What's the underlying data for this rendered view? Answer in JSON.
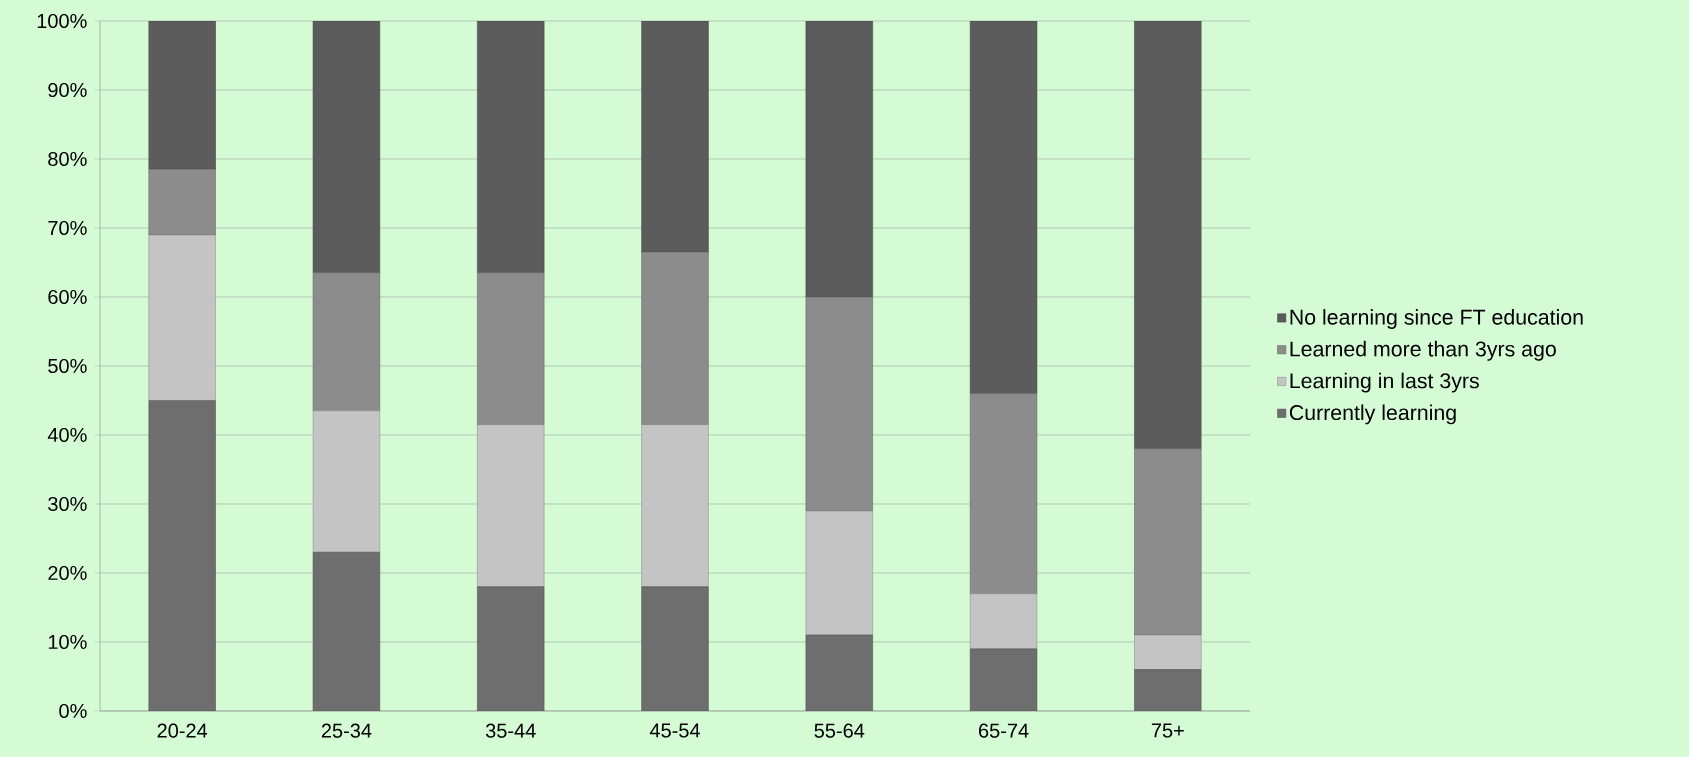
{
  "chart_data": {
    "type": "bar",
    "stacked": true,
    "grid": "y",
    "legend": "right",
    "categories": [
      "20-24",
      "25-34",
      "35-44",
      "45-54",
      "55-64",
      "65-74",
      "75+"
    ],
    "series": [
      {
        "name": "Currently learning",
        "color": "#6e6e6e",
        "values": [
          45,
          23,
          18,
          18,
          11,
          9,
          6
        ]
      },
      {
        "name": "Learning in last 3yrs",
        "color": "#c4c4c4",
        "values": [
          24,
          20.5,
          23.5,
          23.5,
          18,
          8,
          5
        ]
      },
      {
        "name": "Learned more than 3yrs ago",
        "color": "#8c8c8c",
        "values": [
          9.5,
          20,
          22,
          25,
          31,
          29,
          27
        ]
      },
      {
        "name": "No learning since FT education",
        "color": "#5c5c5c",
        "values": [
          21.5,
          36.5,
          36.5,
          33.5,
          40,
          54,
          62
        ]
      }
    ],
    "ylim": [
      0,
      100
    ],
    "yticks": [
      {
        "value": 0,
        "label": "0%"
      },
      {
        "value": 10,
        "label": "10%"
      },
      {
        "value": 20,
        "label": "20%"
      },
      {
        "value": 30,
        "label": "30%"
      },
      {
        "value": 40,
        "label": "40%"
      },
      {
        "value": 50,
        "label": "50%"
      },
      {
        "value": 60,
        "label": "60%"
      },
      {
        "value": 70,
        "label": "70%"
      },
      {
        "value": 80,
        "label": "80%"
      },
      {
        "value": 90,
        "label": "90%"
      },
      {
        "value": 100,
        "label": "100%"
      }
    ]
  }
}
